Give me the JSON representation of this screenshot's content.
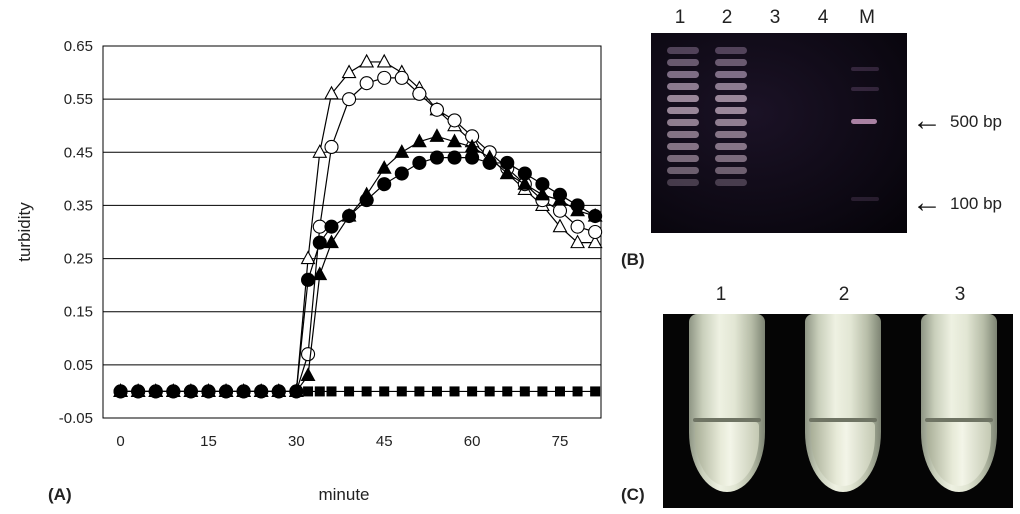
{
  "panels": {
    "a": "(A)",
    "b": "(B)",
    "c": "(C)"
  },
  "chart_data": {
    "type": "line",
    "title": "",
    "xlabel": "minute",
    "ylabel": "turbidity",
    "xlim": [
      -3,
      82
    ],
    "ylim": [
      -0.05,
      0.65
    ],
    "xticks": [
      0,
      15,
      30,
      45,
      60,
      75
    ],
    "yticks": [
      -0.05,
      0.05,
      0.15,
      0.25,
      0.35,
      0.45,
      0.55,
      0.65
    ],
    "ytick_labels": [
      "-0.05",
      "0.05",
      "0.15",
      "0.25",
      "0.35",
      "0.45",
      "0.55",
      "0.65"
    ],
    "grid": "horizontal",
    "legend": "none",
    "x": [
      0,
      3,
      6,
      9,
      12,
      15,
      18,
      21,
      24,
      27,
      30,
      32,
      34,
      36,
      39,
      42,
      45,
      48,
      51,
      54,
      57,
      60,
      63,
      66,
      69,
      72,
      75,
      78,
      81
    ],
    "series": [
      {
        "marker": "triangle-open",
        "values": [
          0,
          0,
          0,
          0,
          0,
          0,
          0,
          0,
          0,
          0,
          0,
          0.25,
          0.45,
          0.56,
          0.6,
          0.62,
          0.62,
          0.6,
          0.57,
          0.53,
          0.5,
          0.47,
          0.44,
          0.41,
          0.38,
          0.35,
          0.31,
          0.28,
          0.28
        ]
      },
      {
        "marker": "circle-open",
        "values": [
          0,
          0,
          0,
          0,
          0,
          0,
          0,
          0,
          0,
          0,
          0,
          0.07,
          0.31,
          0.46,
          0.55,
          0.58,
          0.59,
          0.59,
          0.56,
          0.53,
          0.51,
          0.48,
          0.45,
          0.42,
          0.39,
          0.36,
          0.34,
          0.31,
          0.3
        ]
      },
      {
        "marker": "circle-filled",
        "values": [
          0,
          0,
          0,
          0,
          0,
          0,
          0,
          0,
          0,
          0,
          0,
          0.21,
          0.28,
          0.31,
          0.33,
          0.36,
          0.39,
          0.41,
          0.43,
          0.44,
          0.44,
          0.44,
          0.43,
          0.43,
          0.41,
          0.39,
          0.37,
          0.35,
          0.33
        ]
      },
      {
        "marker": "triangle-filled",
        "values": [
          0,
          0,
          0,
          0,
          0,
          0,
          0,
          0,
          0,
          0,
          0,
          0.03,
          0.22,
          0.28,
          0.33,
          0.37,
          0.42,
          0.45,
          0.47,
          0.48,
          0.47,
          0.46,
          0.44,
          0.41,
          0.39,
          0.37,
          0.36,
          0.34,
          0.33
        ]
      },
      {
        "marker": "square-filled",
        "values": [
          0,
          0,
          0,
          0,
          0,
          0,
          0,
          0,
          0,
          0,
          0,
          0,
          0,
          0,
          0,
          0,
          0,
          0,
          0,
          0,
          0,
          0,
          0,
          0,
          0,
          0,
          0,
          0,
          0
        ]
      }
    ]
  },
  "gel": {
    "lanes": [
      "1",
      "2",
      "3",
      "4",
      "M"
    ],
    "markers": [
      "500 bp",
      "100 bp"
    ]
  },
  "tubes": {
    "labels": [
      "1",
      "2",
      "3"
    ]
  }
}
